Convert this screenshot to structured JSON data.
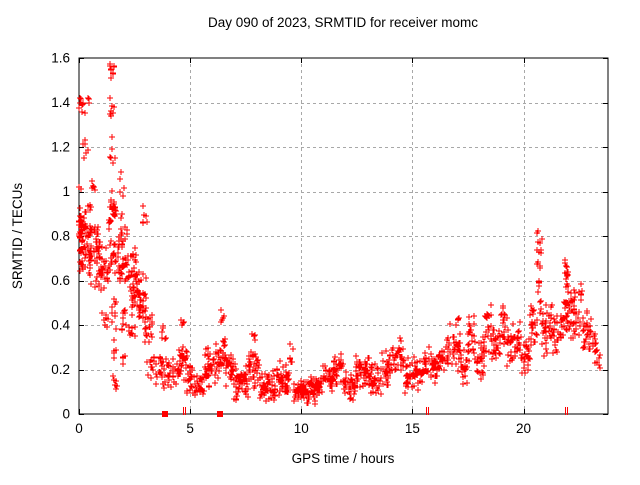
{
  "chart": {
    "title": "Day 090 of 2023, SRMTID for receiver momc",
    "xlabel": "GPS time / hours",
    "ylabel": "SRMTID / TECUs"
  },
  "chart_data": {
    "type": "scatter",
    "title": "Day 090 of 2023, SRMTID for receiver momc",
    "xlabel": "GPS time / hours",
    "ylabel": "SRMTID / TECUs",
    "xlim": [
      0,
      23.8
    ],
    "ylim": [
      0,
      1.6
    ],
    "xtick_labels": [
      "0",
      "5",
      "10",
      "15",
      "20"
    ],
    "xtick_values": [
      0,
      5,
      10,
      15,
      20
    ],
    "ytick_labels": [
      "0",
      "0.2",
      "0.4",
      "0.6",
      "0.8",
      "1",
      "1.2",
      "1.4",
      "1.6"
    ],
    "ytick_values": [
      0,
      0.2,
      0.4,
      0.6,
      0.8,
      1,
      1.2,
      1.4,
      1.6
    ],
    "grid": true,
    "legend": "none",
    "marker": "plus",
    "marker_color": "#ff0000",
    "grid_color": "#a8a8a8",
    "border_color": "#000000",
    "series": [
      {
        "name": "SRMTID",
        "seed": 20230090,
        "point_bands": [
          [
            0.0,
            0.18,
            0.58,
            1.04,
            42
          ],
          [
            0.02,
            0.2,
            1.36,
            1.46,
            6
          ],
          [
            0.1,
            0.45,
            1.28,
            1.46,
            7
          ],
          [
            0.08,
            0.4,
            1.08,
            1.26,
            6
          ],
          [
            0.15,
            0.55,
            0.62,
            1.0,
            40
          ],
          [
            0.45,
            0.95,
            0.56,
            0.9,
            48
          ],
          [
            0.55,
            0.75,
            0.95,
            1.08,
            5
          ],
          [
            0.9,
            1.35,
            0.5,
            0.78,
            30
          ],
          [
            1.0,
            1.3,
            0.36,
            0.5,
            7
          ],
          [
            1.35,
            1.62,
            1.48,
            1.6,
            9
          ],
          [
            1.35,
            1.6,
            1.3,
            1.46,
            7
          ],
          [
            1.38,
            1.6,
            1.05,
            1.28,
            6
          ],
          [
            1.32,
            1.72,
            0.82,
            1.04,
            24
          ],
          [
            1.35,
            1.78,
            0.58,
            0.82,
            20
          ],
          [
            1.45,
            1.72,
            0.36,
            0.56,
            9
          ],
          [
            1.5,
            1.72,
            0.2,
            0.34,
            5
          ],
          [
            1.5,
            1.7,
            0.08,
            0.19,
            6
          ],
          [
            1.78,
            2.18,
            0.55,
            0.92,
            40
          ],
          [
            1.85,
            2.05,
            0.92,
            1.1,
            5
          ],
          [
            1.8,
            2.15,
            0.32,
            0.52,
            9
          ],
          [
            1.9,
            2.1,
            0.17,
            0.28,
            4
          ],
          [
            2.15,
            2.62,
            0.47,
            0.78,
            46
          ],
          [
            2.2,
            2.55,
            0.3,
            0.46,
            9
          ],
          [
            2.6,
            3.05,
            0.36,
            0.68,
            36
          ],
          [
            2.85,
            3.05,
            0.8,
            0.96,
            6
          ],
          [
            2.95,
            3.3,
            0.28,
            0.5,
            18
          ],
          [
            3.05,
            3.35,
            0.14,
            0.28,
            8
          ],
          [
            3.35,
            3.7,
            0.1,
            0.3,
            12
          ],
          [
            3.7,
            4.05,
            0.07,
            0.28,
            20
          ],
          [
            3.72,
            3.95,
            0.28,
            0.42,
            6
          ],
          [
            4.05,
            4.45,
            0.1,
            0.3,
            18
          ],
          [
            4.45,
            4.85,
            0.14,
            0.36,
            28
          ],
          [
            4.55,
            4.75,
            0.36,
            0.44,
            4
          ],
          [
            4.85,
            5.2,
            0.08,
            0.24,
            18
          ],
          [
            5.2,
            5.65,
            0.06,
            0.2,
            24
          ],
          [
            5.65,
            6.15,
            0.1,
            0.3,
            34
          ],
          [
            6.15,
            6.6,
            0.14,
            0.4,
            30
          ],
          [
            6.35,
            6.55,
            0.4,
            0.47,
            5
          ],
          [
            6.6,
            6.95,
            0.1,
            0.3,
            24
          ],
          [
            6.95,
            7.6,
            0.06,
            0.24,
            48
          ],
          [
            7.6,
            8.1,
            0.1,
            0.32,
            34
          ],
          [
            7.78,
            7.95,
            0.32,
            0.38,
            4
          ],
          [
            8.1,
            8.85,
            0.05,
            0.2,
            55
          ],
          [
            8.85,
            9.45,
            0.06,
            0.24,
            45
          ],
          [
            9.45,
            9.65,
            0.18,
            0.32,
            7
          ],
          [
            9.65,
            10.35,
            0.04,
            0.16,
            55
          ],
          [
            10.35,
            10.95,
            0.04,
            0.18,
            45
          ],
          [
            10.95,
            11.45,
            0.08,
            0.24,
            35
          ],
          [
            11.45,
            11.9,
            0.12,
            0.3,
            35
          ],
          [
            11.9,
            12.45,
            0.05,
            0.2,
            38
          ],
          [
            12.45,
            13.05,
            0.1,
            0.28,
            45
          ],
          [
            13.05,
            13.6,
            0.07,
            0.24,
            38
          ],
          [
            13.6,
            14.1,
            0.1,
            0.3,
            32
          ],
          [
            14.1,
            14.65,
            0.14,
            0.35,
            28
          ],
          [
            14.65,
            15.05,
            0.06,
            0.26,
            26
          ],
          [
            15.05,
            15.5,
            0.1,
            0.28,
            28
          ],
          [
            15.5,
            15.78,
            0.14,
            0.34,
            16
          ],
          [
            15.78,
            16.2,
            0.12,
            0.3,
            26
          ],
          [
            16.2,
            16.7,
            0.15,
            0.36,
            32
          ],
          [
            16.7,
            17.15,
            0.18,
            0.45,
            30
          ],
          [
            17.15,
            17.5,
            0.1,
            0.3,
            22
          ],
          [
            17.5,
            17.8,
            0.2,
            0.47,
            20
          ],
          [
            17.8,
            18.25,
            0.15,
            0.36,
            30
          ],
          [
            18.25,
            18.55,
            0.25,
            0.51,
            20
          ],
          [
            18.55,
            18.95,
            0.22,
            0.42,
            28
          ],
          [
            18.95,
            19.25,
            0.28,
            0.54,
            20
          ],
          [
            19.25,
            19.9,
            0.2,
            0.42,
            40
          ],
          [
            19.9,
            20.3,
            0.15,
            0.36,
            26
          ],
          [
            20.3,
            20.6,
            0.28,
            0.52,
            22
          ],
          [
            20.6,
            20.82,
            0.38,
            0.92,
            22
          ],
          [
            20.82,
            21.3,
            0.25,
            0.5,
            34
          ],
          [
            21.3,
            21.72,
            0.26,
            0.46,
            22
          ],
          [
            21.72,
            22.08,
            0.32,
            0.56,
            26
          ],
          [
            21.85,
            22.02,
            0.56,
            0.72,
            14
          ],
          [
            22.08,
            22.65,
            0.3,
            0.62,
            40
          ],
          [
            22.65,
            23.05,
            0.26,
            0.48,
            28
          ],
          [
            23.05,
            23.35,
            0.2,
            0.4,
            12
          ],
          [
            23.35,
            23.55,
            0.18,
            0.3,
            4
          ]
        ]
      }
    ],
    "baseline_markers": {
      "squares_x": [
        3.85,
        6.35
      ],
      "tick_pairs_x": [
        [
          4.7,
          4.78
        ],
        [
          15.62,
          15.72
        ],
        [
          21.88,
          21.97
        ]
      ]
    }
  }
}
